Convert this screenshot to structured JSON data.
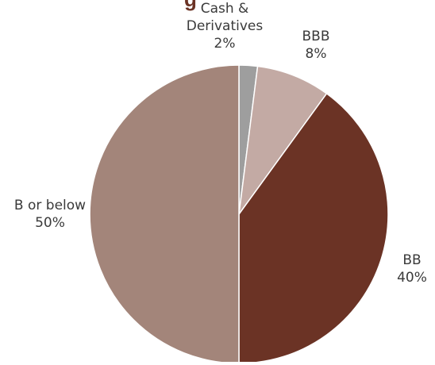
{
  "chart_data": {
    "type": "pie",
    "title_fragment": "g",
    "start_angle_deg": 0,
    "direction": "clockwise",
    "slices": [
      {
        "label_lines": [
          "Cash &",
          "Derivatives"
        ],
        "value": 2,
        "value_label": "2%",
        "color": "#9e9e9e"
      },
      {
        "label_lines": [
          "BBB"
        ],
        "value": 8,
        "value_label": "8%",
        "color": "#c3aaa4"
      },
      {
        "label_lines": [
          "BB"
        ],
        "value": 40,
        "value_label": "40%",
        "color": "#6b3325"
      },
      {
        "label_lines": [
          "B or below"
        ],
        "value": 50,
        "value_label": "50%",
        "color": "#a3857a"
      }
    ]
  }
}
